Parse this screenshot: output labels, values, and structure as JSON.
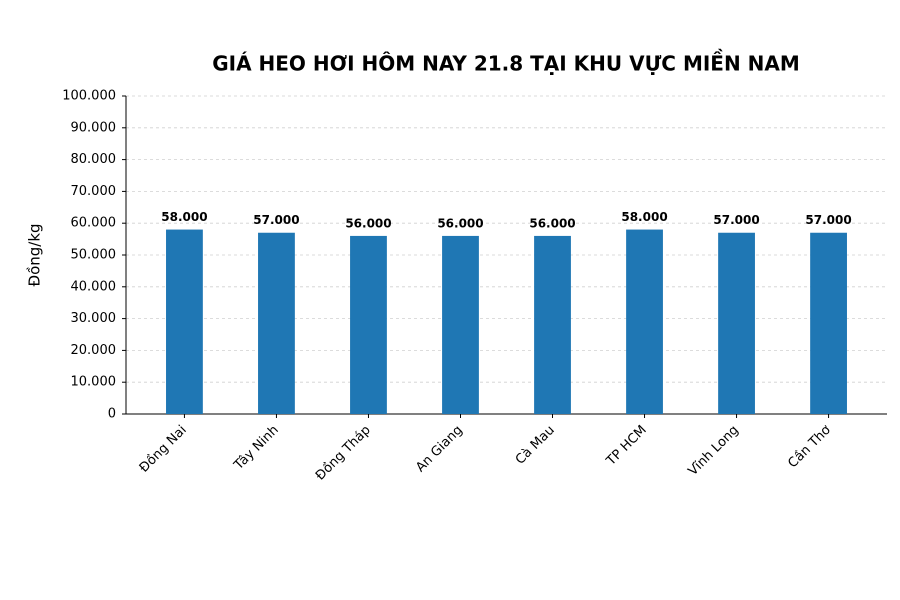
{
  "chart_data": {
    "type": "bar",
    "title": "GIÁ HEO HƠI HÔM NAY 21.8 TẠI KHU VỰC MIỀN NAM",
    "y_label": "Đồng/kg",
    "categories": [
      "Đồng Nai",
      "Tây Ninh",
      "Đồng Tháp",
      "An Giang",
      "Cà Mau",
      "TP HCM",
      "Vĩnh Long",
      "Cần Thơ"
    ],
    "values": [
      58000,
      57000,
      56000,
      56000,
      56000,
      58000,
      57000,
      57000
    ],
    "value_labels": [
      "58.000",
      "57.000",
      "56.000",
      "56.000",
      "56.000",
      "58.000",
      "57.000",
      "57.000"
    ],
    "color": "#1f77b4",
    "ylim": [
      0,
      100000
    ],
    "yticks": [
      0,
      {
        "value": 10000,
        "label": "10.000"
      },
      {
        "value": 20000,
        "label": "20.000"
      },
      {
        "value": 30000,
        "label": "30.000"
      },
      {
        "value": 40000,
        "label": "40.000"
      },
      {
        "value": 50000,
        "label": "50.000"
      },
      {
        "value": 60000,
        "label": "60.000"
      },
      {
        "value": 70000,
        "label": "70.000"
      },
      {
        "value": 80000,
        "label": "80.000"
      },
      {
        "value": 90000,
        "label": "90.000"
      },
      {
        "value": 100000,
        "label": "100.000"
      }
    ],
    "grid": true
  }
}
